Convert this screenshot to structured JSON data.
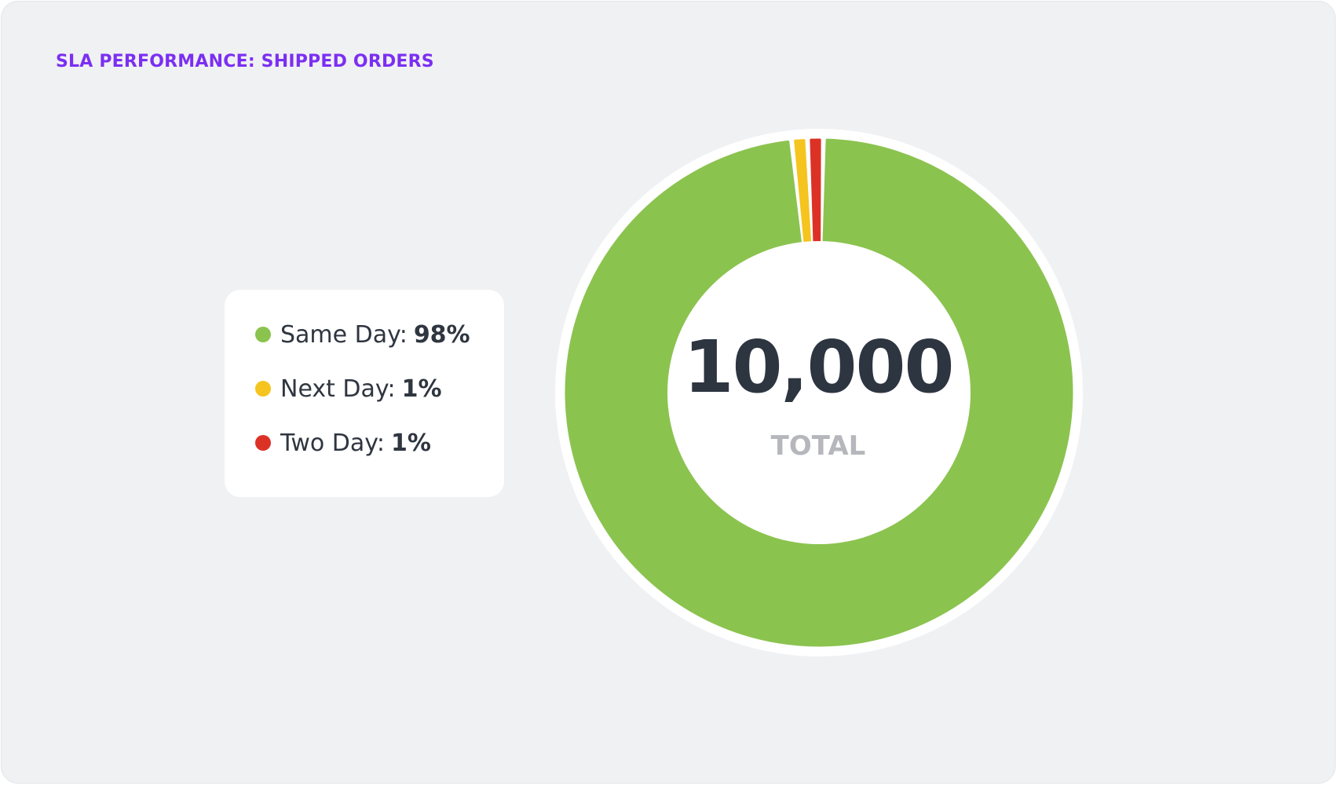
{
  "card": {
    "title": "SLA PERFORMANCE: SHIPPED ORDERS"
  },
  "legend": {
    "items": [
      {
        "label": "Same Day:",
        "value": "98%",
        "color": "#8bc34f"
      },
      {
        "label": "Next Day:",
        "value": "1%",
        "color": "#f6c41f"
      },
      {
        "label": "Two Day:",
        "value": "1%",
        "color": "#dc3226"
      }
    ]
  },
  "center": {
    "total": "10,000",
    "label": "TOTAL"
  },
  "chart_data": {
    "type": "pie",
    "title": "SLA PERFORMANCE: SHIPPED ORDERS",
    "categories": [
      "Same Day",
      "Next Day",
      "Two Day"
    ],
    "values": [
      98,
      1,
      1
    ],
    "unit": "%",
    "colors": [
      "#8bc34f",
      "#f6c41f",
      "#dc3226"
    ],
    "total": "10,000",
    "center_label": "TOTAL",
    "legend_position": "left"
  }
}
